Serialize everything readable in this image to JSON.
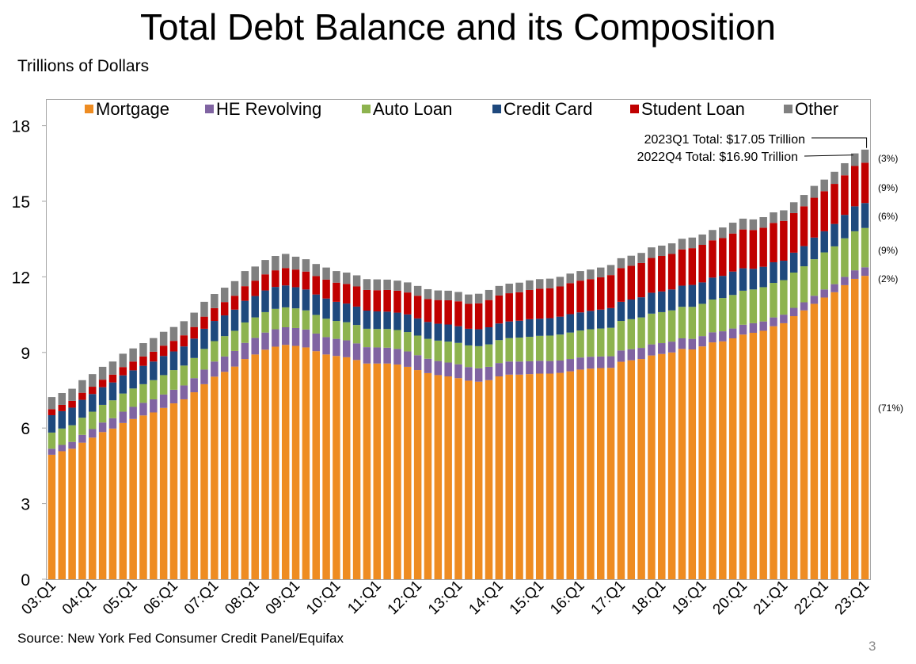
{
  "title": "Total Debt Balance and its Composition",
  "y_unit_label": "Trillions of Dollars",
  "source": "Source: New York Fed Consumer Credit Panel/Equifax",
  "page_number": "3",
  "chart_data": {
    "type": "bar",
    "stacked": true,
    "title": "Total Debt Balance and its Composition",
    "ylabel": "Trillions of Dollars",
    "xlabel": "",
    "ylim": [
      0,
      19
    ],
    "yticks": [
      0,
      3,
      6,
      9,
      12,
      15,
      18
    ],
    "legend_position": "top",
    "year_labels": [
      "03:Q1",
      "04:Q1",
      "05:Q1",
      "06:Q1",
      "07:Q1",
      "08:Q1",
      "09:Q1",
      "10:Q1",
      "11:Q1",
      "12:Q1",
      "13:Q1",
      "14:Q1",
      "15:Q1",
      "16:Q1",
      "17:Q1",
      "18:Q1",
      "19:Q1",
      "20:Q1",
      "21:Q1",
      "22:Q1",
      "23:Q1"
    ],
    "categories": [
      "03:Q1",
      "03:Q2",
      "03:Q3",
      "03:Q4",
      "04:Q1",
      "04:Q2",
      "04:Q3",
      "04:Q4",
      "05:Q1",
      "05:Q2",
      "05:Q3",
      "05:Q4",
      "06:Q1",
      "06:Q2",
      "06:Q3",
      "06:Q4",
      "07:Q1",
      "07:Q2",
      "07:Q3",
      "07:Q4",
      "08:Q1",
      "08:Q2",
      "08:Q3",
      "08:Q4",
      "09:Q1",
      "09:Q2",
      "09:Q3",
      "09:Q4",
      "10:Q1",
      "10:Q2",
      "10:Q3",
      "10:Q4",
      "11:Q1",
      "11:Q2",
      "11:Q3",
      "11:Q4",
      "12:Q1",
      "12:Q2",
      "12:Q3",
      "12:Q4",
      "13:Q1",
      "13:Q2",
      "13:Q3",
      "13:Q4",
      "14:Q1",
      "14:Q2",
      "14:Q3",
      "14:Q4",
      "15:Q1",
      "15:Q2",
      "15:Q3",
      "15:Q4",
      "16:Q1",
      "16:Q2",
      "16:Q3",
      "16:Q4",
      "17:Q1",
      "17:Q2",
      "17:Q3",
      "17:Q4",
      "18:Q1",
      "18:Q2",
      "18:Q3",
      "18:Q4",
      "19:Q1",
      "19:Q2",
      "19:Q3",
      "19:Q4",
      "20:Q1",
      "20:Q2",
      "20:Q3",
      "20:Q4",
      "21:Q1",
      "21:Q2",
      "21:Q3",
      "21:Q4",
      "22:Q1",
      "22:Q2",
      "22:Q3",
      "22:Q4",
      "23:Q1"
    ],
    "series": [
      {
        "name": "Mortgage",
        "color": "#ee8c22",
        "values": [
          4.94,
          5.08,
          5.18,
          5.42,
          5.62,
          5.84,
          5.98,
          6.2,
          6.36,
          6.5,
          6.62,
          6.8,
          6.98,
          7.14,
          7.42,
          7.74,
          8.04,
          8.23,
          8.44,
          8.74,
          8.92,
          9.11,
          9.23,
          9.3,
          9.26,
          9.2,
          9.05,
          8.92,
          8.86,
          8.81,
          8.7,
          8.56,
          8.56,
          8.56,
          8.52,
          8.43,
          8.3,
          8.18,
          8.1,
          8.05,
          7.98,
          7.88,
          7.84,
          7.9,
          8.05,
          8.12,
          8.12,
          8.14,
          8.16,
          8.16,
          8.19,
          8.25,
          8.32,
          8.36,
          8.38,
          8.39,
          8.63,
          8.69,
          8.74,
          8.88,
          8.94,
          9.0,
          9.14,
          9.12,
          9.24,
          9.4,
          9.44,
          9.56,
          9.71,
          9.78,
          9.86,
          10.04,
          10.16,
          10.44,
          10.67,
          10.93,
          11.18,
          11.39,
          11.67,
          11.92,
          12.04
        ]
      },
      {
        "name": "HE Revolving",
        "color": "#8064a2",
        "values": [
          0.24,
          0.25,
          0.27,
          0.31,
          0.34,
          0.38,
          0.41,
          0.45,
          0.48,
          0.5,
          0.52,
          0.53,
          0.54,
          0.55,
          0.56,
          0.58,
          0.6,
          0.61,
          0.62,
          0.64,
          0.66,
          0.68,
          0.69,
          0.7,
          0.71,
          0.71,
          0.7,
          0.69,
          0.68,
          0.67,
          0.66,
          0.65,
          0.64,
          0.63,
          0.62,
          0.61,
          0.59,
          0.57,
          0.56,
          0.55,
          0.55,
          0.54,
          0.53,
          0.53,
          0.53,
          0.52,
          0.52,
          0.51,
          0.51,
          0.5,
          0.49,
          0.49,
          0.48,
          0.47,
          0.46,
          0.46,
          0.45,
          0.44,
          0.44,
          0.44,
          0.43,
          0.43,
          0.42,
          0.42,
          0.41,
          0.4,
          0.4,
          0.39,
          0.39,
          0.38,
          0.37,
          0.35,
          0.34,
          0.33,
          0.32,
          0.32,
          0.32,
          0.32,
          0.33,
          0.34,
          0.34
        ]
      },
      {
        "name": "Auto Loan",
        "color": "#8db34f",
        "values": [
          0.64,
          0.65,
          0.66,
          0.68,
          0.69,
          0.7,
          0.71,
          0.72,
          0.73,
          0.74,
          0.76,
          0.77,
          0.78,
          0.79,
          0.8,
          0.82,
          0.81,
          0.81,
          0.8,
          0.81,
          0.81,
          0.81,
          0.81,
          0.79,
          0.78,
          0.76,
          0.74,
          0.73,
          0.71,
          0.72,
          0.73,
          0.73,
          0.73,
          0.74,
          0.75,
          0.77,
          0.78,
          0.79,
          0.81,
          0.83,
          0.85,
          0.86,
          0.88,
          0.89,
          0.91,
          0.93,
          0.95,
          0.97,
          0.99,
          1.01,
          1.03,
          1.05,
          1.07,
          1.09,
          1.11,
          1.13,
          1.17,
          1.19,
          1.21,
          1.22,
          1.23,
          1.24,
          1.25,
          1.27,
          1.28,
          1.3,
          1.32,
          1.33,
          1.35,
          1.34,
          1.36,
          1.37,
          1.37,
          1.4,
          1.43,
          1.45,
          1.47,
          1.5,
          1.53,
          1.55,
          1.56
        ]
      },
      {
        "name": "Credit Card",
        "color": "#1f497d",
        "values": [
          0.69,
          0.69,
          0.7,
          0.71,
          0.7,
          0.7,
          0.71,
          0.72,
          0.72,
          0.73,
          0.74,
          0.76,
          0.74,
          0.76,
          0.77,
          0.8,
          0.8,
          0.82,
          0.84,
          0.86,
          0.85,
          0.86,
          0.87,
          0.87,
          0.84,
          0.83,
          0.81,
          0.8,
          0.76,
          0.74,
          0.73,
          0.72,
          0.7,
          0.69,
          0.69,
          0.7,
          0.68,
          0.67,
          0.67,
          0.68,
          0.66,
          0.66,
          0.67,
          0.68,
          0.66,
          0.66,
          0.67,
          0.7,
          0.68,
          0.69,
          0.71,
          0.73,
          0.72,
          0.73,
          0.75,
          0.78,
          0.76,
          0.78,
          0.8,
          0.83,
          0.82,
          0.83,
          0.84,
          0.87,
          0.85,
          0.87,
          0.88,
          0.93,
          0.89,
          0.82,
          0.81,
          0.82,
          0.77,
          0.79,
          0.8,
          0.86,
          0.84,
          0.89,
          0.93,
          0.99,
          0.99
        ]
      },
      {
        "name": "Student Loan",
        "color": "#c00000",
        "values": [
          0.24,
          0.25,
          0.27,
          0.28,
          0.29,
          0.3,
          0.31,
          0.33,
          0.35,
          0.37,
          0.39,
          0.41,
          0.42,
          0.44,
          0.46,
          0.48,
          0.51,
          0.53,
          0.55,
          0.58,
          0.61,
          0.64,
          0.66,
          0.69,
          0.7,
          0.71,
          0.73,
          0.75,
          0.76,
          0.78,
          0.8,
          0.82,
          0.84,
          0.86,
          0.87,
          0.87,
          0.9,
          0.91,
          0.94,
          0.96,
          0.99,
          0.99,
          1.03,
          1.08,
          1.11,
          1.12,
          1.13,
          1.16,
          1.19,
          1.19,
          1.2,
          1.23,
          1.26,
          1.26,
          1.28,
          1.31,
          1.34,
          1.34,
          1.36,
          1.38,
          1.41,
          1.41,
          1.44,
          1.46,
          1.49,
          1.48,
          1.5,
          1.51,
          1.54,
          1.54,
          1.55,
          1.56,
          1.58,
          1.57,
          1.58,
          1.58,
          1.59,
          1.59,
          1.57,
          1.6,
          1.6
        ]
      },
      {
        "name": "Other",
        "color": "#808080",
        "values": [
          0.48,
          0.47,
          0.48,
          0.5,
          0.5,
          0.51,
          0.52,
          0.53,
          0.52,
          0.53,
          0.54,
          0.55,
          0.55,
          0.56,
          0.57,
          0.59,
          0.56,
          0.57,
          0.58,
          0.6,
          0.56,
          0.57,
          0.57,
          0.56,
          0.51,
          0.49,
          0.48,
          0.48,
          0.46,
          0.45,
          0.44,
          0.43,
          0.43,
          0.41,
          0.4,
          0.4,
          0.39,
          0.39,
          0.38,
          0.38,
          0.37,
          0.37,
          0.38,
          0.4,
          0.38,
          0.38,
          0.38,
          0.38,
          0.38,
          0.38,
          0.38,
          0.38,
          0.38,
          0.38,
          0.39,
          0.4,
          0.39,
          0.4,
          0.4,
          0.42,
          0.41,
          0.42,
          0.42,
          0.42,
          0.41,
          0.41,
          0.42,
          0.43,
          0.43,
          0.42,
          0.42,
          0.42,
          0.42,
          0.43,
          0.45,
          0.47,
          0.46,
          0.48,
          0.48,
          0.5,
          0.52
        ]
      }
    ],
    "totals_annotations": [
      {
        "text": "2023Q1 Total: $17.05 Trillion",
        "category": "23:Q1"
      },
      {
        "text": "2022Q4 Total: $16.90 Trillion",
        "category": "22:Q4"
      }
    ],
    "share_labels": [
      {
        "series": "Other",
        "text": "(3%)"
      },
      {
        "series": "Student Loan",
        "text": "(9%)"
      },
      {
        "series": "Credit Card",
        "text": "(6%)"
      },
      {
        "series": "Auto Loan",
        "text": "(9%)"
      },
      {
        "series": "HE Revolving",
        "text": "(2%)"
      },
      {
        "series": "Mortgage",
        "text": "(71%)"
      }
    ]
  }
}
